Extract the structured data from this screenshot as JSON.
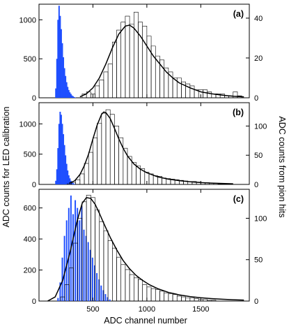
{
  "figure": {
    "xlabel": "ADC channel number",
    "ylabel_left": "ADC counts for LED calibration",
    "ylabel_right": "ADC counts from pion hits"
  },
  "colors": {
    "led_hist": "#1f4fff",
    "frame": "#000000",
    "fit": "#000000"
  },
  "chart_data": [
    {
      "type": "histogram",
      "panel_label": "(a)",
      "xlim": [
        0,
        1950
      ],
      "x_ticks": [
        500,
        1000,
        1500
      ],
      "x_tick_labels": [
        "",
        "",
        ""
      ],
      "left_axis": {
        "ylim": [
          0,
          1200
        ],
        "ticks": [
          0,
          500,
          1000
        ],
        "tick_labels": [
          "0",
          "500",
          "1000"
        ]
      },
      "right_axis": {
        "ylim": [
          0,
          47
        ],
        "ticks": [
          0,
          20,
          40
        ],
        "tick_labels": [
          "0",
          "20",
          "40"
        ]
      },
      "series": [
        {
          "kind": "led_peak",
          "axis": "left",
          "x": [
            150,
            160,
            170,
            180,
            190,
            200,
            210,
            220,
            230,
            240,
            250,
            260,
            270,
            280,
            290,
            300,
            310,
            320,
            330
          ],
          "y": [
            120,
            500,
            1000,
            1180,
            1050,
            880,
            700,
            520,
            380,
            280,
            200,
            140,
            100,
            70,
            50,
            30,
            20,
            10,
            5
          ]
        },
        {
          "kind": "pion_hist",
          "axis": "right",
          "x": [
            360,
            400,
            440,
            480,
            520,
            560,
            600,
            640,
            680,
            720,
            760,
            800,
            840,
            880,
            920,
            960,
            1000,
            1040,
            1080,
            1120,
            1160,
            1200,
            1240,
            1280,
            1320,
            1360,
            1400,
            1440,
            1480,
            1520,
            1560,
            1600,
            1640,
            1680,
            1720,
            1760,
            1800,
            1840,
            1880
          ],
          "y": [
            0,
            2,
            3,
            2,
            6,
            9,
            13,
            17,
            28,
            34,
            38,
            41,
            37,
            43,
            38,
            36,
            31,
            26,
            21,
            19,
            15,
            13,
            10,
            10,
            8,
            7,
            6,
            4,
            4,
            4,
            3,
            2,
            2,
            2,
            1,
            1,
            3,
            1,
            0
          ]
        },
        {
          "kind": "fit",
          "axis": "right",
          "x": [
            380,
            440,
            500,
            560,
            620,
            680,
            740,
            800,
            840,
            880,
            940,
            1000,
            1060,
            1120,
            1180,
            1240,
            1300,
            1400,
            1500,
            1600,
            1700,
            1800,
            1900
          ],
          "y": [
            0.5,
            2,
            5,
            10,
            17,
            25,
            32,
            36,
            36.5,
            35,
            31,
            26,
            21,
            17,
            13,
            10,
            7.5,
            5,
            3,
            2,
            1.3,
            0.8,
            0.5
          ]
        }
      ]
    },
    {
      "type": "histogram",
      "panel_label": "(b)",
      "xlim": [
        0,
        1950
      ],
      "x_ticks": [
        500,
        1000,
        1500
      ],
      "x_tick_labels": [
        "",
        "",
        ""
      ],
      "left_axis": {
        "ylim": [
          0,
          1350
        ],
        "ticks": [
          0,
          500,
          1000
        ],
        "tick_labels": [
          "0",
          "500",
          "1000"
        ]
      },
      "right_axis": {
        "ylim": [
          0,
          140
        ],
        "ticks": [
          0,
          50,
          100
        ],
        "tick_labels": [
          "0",
          "50",
          "100"
        ]
      },
      "series": [
        {
          "kind": "led_peak",
          "axis": "left",
          "x": [
            150,
            160,
            170,
            180,
            190,
            200,
            210,
            220,
            230,
            240,
            250,
            260,
            270,
            280,
            290,
            300,
            310,
            320,
            330
          ],
          "y": [
            60,
            250,
            600,
            1000,
            1200,
            1150,
            1000,
            830,
            650,
            480,
            340,
            230,
            150,
            100,
            60,
            35,
            20,
            10,
            4
          ]
        },
        {
          "kind": "pion_hist",
          "axis": "right",
          "x": [
            260,
            300,
            340,
            380,
            420,
            460,
            500,
            540,
            580,
            620,
            660,
            700,
            740,
            780,
            820,
            860,
            900,
            940,
            980,
            1020,
            1060,
            1100,
            1140,
            1180,
            1220,
            1260,
            1300,
            1340,
            1380,
            1420,
            1460,
            1500,
            1540,
            1580,
            1620,
            1660,
            1700,
            1740,
            1780
          ],
          "y": [
            1,
            3,
            8,
            18,
            36,
            55,
            80,
            105,
            122,
            128,
            120,
            100,
            80,
            62,
            48,
            38,
            32,
            27,
            21,
            18,
            15,
            14,
            11,
            10,
            9,
            8,
            7,
            6,
            5,
            5,
            4,
            3,
            3,
            2,
            2,
            1,
            1,
            1,
            0
          ]
        },
        {
          "kind": "fit",
          "axis": "right",
          "x": [
            280,
            330,
            380,
            420,
            460,
            500,
            540,
            580,
            600,
            620,
            660,
            700,
            740,
            780,
            820,
            880,
            940,
            1000,
            1100,
            1200,
            1300,
            1400,
            1500,
            1600,
            1700,
            1800
          ],
          "y": [
            2,
            6,
            17,
            32,
            52,
            78,
            102,
            120,
            124,
            123,
            113,
            96,
            78,
            62,
            49,
            35,
            26,
            20,
            13,
            9,
            6.5,
            4.5,
            3.2,
            2.3,
            1.6,
            1.1
          ]
        }
      ]
    },
    {
      "type": "histogram",
      "panel_label": "(c)",
      "xlim": [
        0,
        1950
      ],
      "x_ticks": [
        500,
        1000,
        1500
      ],
      "x_tick_labels": [
        "500",
        "1000",
        "1500"
      ],
      "left_axis": {
        "ylim": [
          0,
          720
        ],
        "ticks": [
          0,
          200,
          400,
          600
        ],
        "tick_labels": [
          "0",
          "200",
          "400",
          "600"
        ]
      },
      "right_axis": {
        "ylim": [
          0,
          135
        ],
        "ticks": [
          0,
          50,
          100
        ],
        "tick_labels": [
          "0",
          "50",
          "100"
        ]
      },
      "series": [
        {
          "kind": "led_peak",
          "axis": "left",
          "x": [
            170,
            190,
            210,
            230,
            250,
            270,
            290,
            310,
            330,
            350,
            370,
            390,
            410,
            430,
            450,
            470,
            490,
            510,
            530,
            550,
            570,
            590,
            610,
            630,
            650
          ],
          "y": [
            20,
            120,
            280,
            420,
            520,
            600,
            680,
            560,
            650,
            600,
            520,
            610,
            460,
            420,
            380,
            330,
            280,
            230,
            180,
            140,
            100,
            70,
            45,
            25,
            10
          ]
        },
        {
          "kind": "pion_hist",
          "axis": "right",
          "x": [
            200,
            240,
            280,
            320,
            360,
            400,
            440,
            480,
            520,
            560,
            600,
            640,
            680,
            720,
            760,
            800,
            840,
            880,
            920,
            960,
            1000,
            1040,
            1080,
            1120,
            1160,
            1200,
            1240,
            1280,
            1320,
            1360,
            1400,
            1440,
            1480,
            1520,
            1560,
            1600
          ],
          "y": [
            5,
            20,
            40,
            70,
            100,
            120,
            128,
            125,
            110,
            96,
            85,
            73,
            64,
            53,
            44,
            38,
            32,
            28,
            26,
            20,
            17,
            15,
            14,
            12,
            10,
            9,
            8,
            6,
            5,
            4,
            4,
            3,
            2,
            2,
            1,
            1
          ]
        },
        {
          "kind": "fit",
          "axis": "right",
          "x": [
            80,
            150,
            220,
            290,
            350,
            400,
            440,
            480,
            520,
            560,
            600,
            660,
            720,
            780,
            840,
            900,
            960,
            1020,
            1100,
            1200,
            1300,
            1400,
            1500,
            1600,
            1700,
            1800,
            1900
          ],
          "y": [
            0,
            5,
            25,
            60,
            95,
            118,
            125,
            124,
            117,
            106,
            94,
            77,
            62,
            49,
            39,
            31,
            25,
            20,
            15,
            10.5,
            7.5,
            5.4,
            4,
            3,
            2.2,
            1.6,
            1.2
          ]
        }
      ]
    }
  ]
}
